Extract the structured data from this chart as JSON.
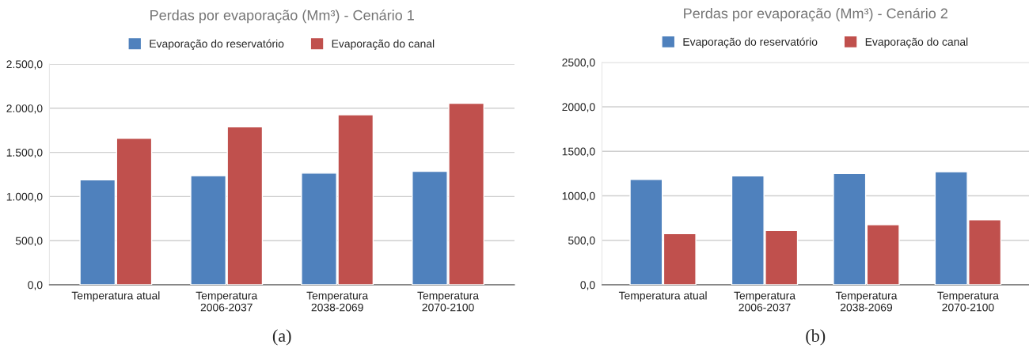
{
  "chart_data": [
    {
      "type": "bar",
      "title": "Perdas por evaporação (Mm³) - Cenário 1",
      "categories": [
        "Temperatura atual",
        "Temperatura\n2006-2037",
        "Temperatura\n2038-2069",
        "Temperatura\n2070-2100"
      ],
      "series": [
        {
          "name": "Evaporação do reservatório",
          "color": "#4f81bd",
          "values": [
            1190,
            1235,
            1265,
            1285
          ]
        },
        {
          "name": "Evaporação do canal",
          "color": "#c0504d",
          "values": [
            1660,
            1790,
            1925,
            2055
          ]
        }
      ],
      "ylim": [
        0,
        2500
      ],
      "yticks": [
        {
          "value": 0,
          "label": "0,0"
        },
        {
          "value": 500,
          "label": "500,0"
        },
        {
          "value": 1000,
          "label": "1.000,0"
        },
        {
          "value": 1500,
          "label": "1.500,0"
        },
        {
          "value": 2000,
          "label": "2.000,0"
        },
        {
          "value": 2500,
          "label": "2.500,0"
        }
      ],
      "grid": "y",
      "legend": "top",
      "annotations": [
        "(a)"
      ]
    },
    {
      "type": "bar",
      "title": "Perdas por evaporação (Mm³) - Cenário 2",
      "categories": [
        "Temperatura atual",
        "Temperatura\n2006-2037",
        "Temperatura\n2038-2069",
        "Temperatura\n2070-2100"
      ],
      "series": [
        {
          "name": "Evaporação do reservatório",
          "color": "#4f81bd",
          "values": [
            1185,
            1225,
            1250,
            1270
          ]
        },
        {
          "name": "Evaporação do canal",
          "color": "#c0504d",
          "values": [
            575,
            610,
            675,
            730
          ]
        }
      ],
      "ylim": [
        0,
        2500
      ],
      "yticks": [
        {
          "value": 0,
          "label": "0,0"
        },
        {
          "value": 500,
          "label": "500,0"
        },
        {
          "value": 1000,
          "label": "1000,0"
        },
        {
          "value": 1500,
          "label": "1500,0"
        },
        {
          "value": 2000,
          "label": "2000,0"
        },
        {
          "value": 2500,
          "label": "2500,0"
        }
      ],
      "grid": "y",
      "legend": "top",
      "annotations": [
        "(b)"
      ]
    }
  ]
}
